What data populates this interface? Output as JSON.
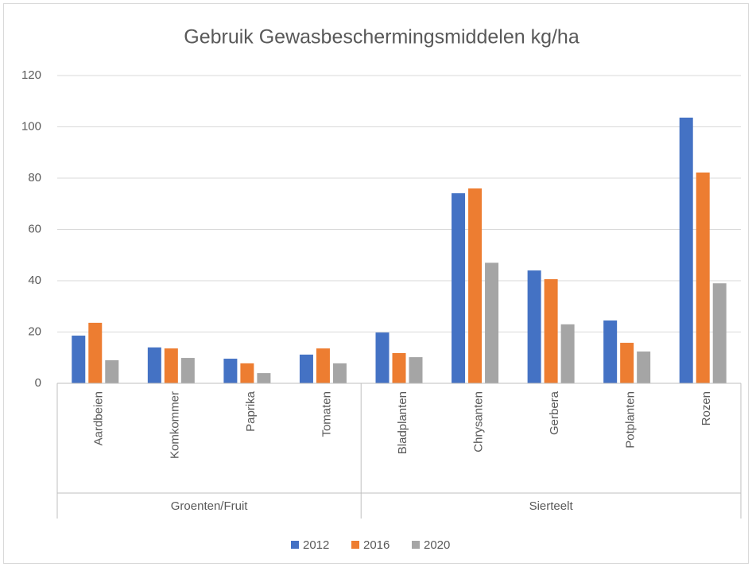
{
  "chart_data": {
    "type": "bar",
    "title": "Gebruik Gewasbeschermingsmiddelen kg/ha",
    "categories": [
      "Aardbeien",
      "Komkommer",
      "Paprika",
      "Tomaten",
      "Bladplanten",
      "Chrysanten",
      "Gerbera",
      "Potplanten",
      "Rozen"
    ],
    "category_groups": [
      "Groenten/Fruit",
      "Groenten/Fruit",
      "Groenten/Fruit",
      "Groenten/Fruit",
      "Sierteelt",
      "Sierteelt",
      "Sierteelt",
      "Sierteelt",
      "Sierteelt"
    ],
    "series": [
      {
        "name": "2012",
        "color": "#4472c4",
        "values": [
          18.6,
          14,
          9.6,
          11.2,
          19.8,
          74.1,
          44,
          24.5,
          103.6
        ]
      },
      {
        "name": "2016",
        "color": "#ed7d31",
        "values": [
          23.6,
          13.6,
          7.8,
          13.6,
          11.8,
          76,
          40.6,
          15.8,
          82.2
        ]
      },
      {
        "name": "2020",
        "color": "#a5a5a5",
        "values": [
          9,
          9.9,
          4,
          7.8,
          10.2,
          47,
          23,
          12.4,
          39
        ]
      }
    ],
    "ylim": [
      0,
      120
    ],
    "yticks": [
      0,
      20,
      40,
      60,
      80,
      100,
      120
    ],
    "grid": true,
    "legend": "bottom"
  }
}
